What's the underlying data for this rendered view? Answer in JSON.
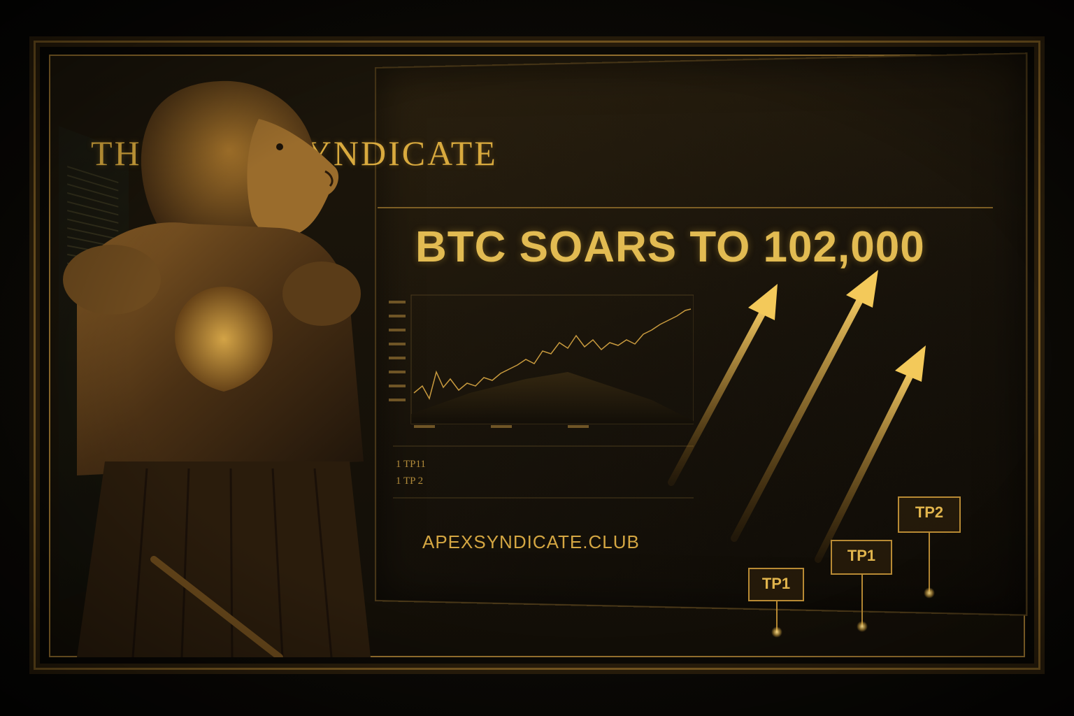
{
  "screen": {
    "brand_title": "THE APEX SYNDICATE",
    "headline": "BTC SOARS TO 102,000",
    "legend_line_1": "1 TP11",
    "legend_line_2": "1 TP 2",
    "url": "APEXSYNDICATE.CLUB"
  },
  "targets": [
    {
      "label": "TP1"
    },
    {
      "label": "TP1"
    },
    {
      "label": "TP2"
    }
  ],
  "icons": [
    "lion-warrior-icon",
    "price-chart-icon",
    "up-arrow-icon"
  ],
  "colors": {
    "gold": "#d9aa3e",
    "dark": "#120e07",
    "frame": "#9a7430"
  }
}
